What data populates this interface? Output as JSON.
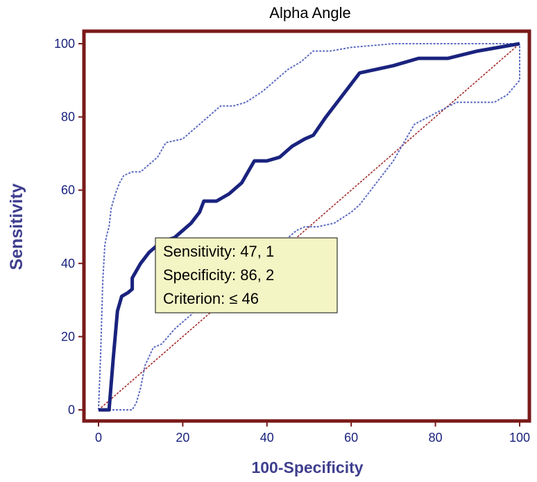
{
  "chart_data": {
    "type": "line",
    "title": "Alpha Angle",
    "xlabel": "100-Specificity",
    "ylabel": "Sensitivity",
    "xlim": [
      0,
      100
    ],
    "ylim": [
      0,
      100
    ],
    "xticks": [
      "0",
      "20",
      "40",
      "60",
      "80",
      "100"
    ],
    "yticks": [
      "0",
      "20",
      "40",
      "60",
      "80",
      "100"
    ],
    "grid": false,
    "colors": {
      "frame": "#7a1a1a",
      "roc": "#1a237e",
      "ci": "#5c6bc0",
      "diagonal": "#a52a2a",
      "annotation_fill": "#f3f5c4",
      "annotation_border": "#333333"
    },
    "series": [
      {
        "x": [
          0,
          2.5,
          3.5,
          4.5,
          5.5,
          7,
          8,
          8,
          9,
          10,
          12,
          15,
          18,
          20,
          22,
          24,
          25,
          28,
          31,
          34,
          37,
          40,
          43,
          46,
          49,
          51,
          54,
          58,
          62,
          70,
          76,
          83,
          90,
          100
        ],
        "y": [
          0,
          0,
          14,
          27,
          31,
          32,
          33,
          36,
          38,
          40,
          43,
          46,
          47,
          49,
          51,
          54,
          57,
          57,
          59,
          62,
          68,
          68,
          69,
          72,
          74,
          75,
          80,
          86,
          92,
          94,
          96,
          96,
          98,
          100
        ]
      },
      {
        "x": [
          0,
          0.5,
          1,
          1.5,
          2,
          2.5,
          3,
          4,
          5,
          6,
          8,
          10,
          12,
          14,
          16,
          20,
          22,
          24,
          27,
          29,
          32,
          35,
          39,
          42,
          45,
          48,
          51,
          55,
          60,
          70,
          80,
          90,
          97,
          100
        ],
        "y": [
          0,
          15,
          35,
          45,
          48,
          50,
          55,
          59,
          62,
          64,
          65,
          65,
          67,
          69,
          73,
          74,
          76,
          78,
          81,
          83,
          83,
          84,
          87,
          90,
          93,
          95,
          98,
          98,
          99,
          100,
          100,
          100,
          100,
          100
        ]
      },
      {
        "x": [
          0,
          2,
          4,
          6,
          8,
          9,
          10,
          11,
          13,
          15,
          18,
          22,
          25,
          28,
          31,
          34,
          37,
          41,
          45,
          47,
          49,
          52,
          56,
          60,
          62,
          66,
          70,
          73,
          75,
          80,
          85,
          90,
          94,
          97,
          100,
          100
        ],
        "y": [
          0,
          0,
          0,
          0,
          0,
          2,
          6,
          12,
          17,
          18,
          22,
          26,
          30,
          31,
          34,
          38,
          41,
          44,
          47,
          49,
          50,
          50,
          51,
          54,
          56,
          62,
          68,
          74,
          78,
          81,
          84,
          84,
          84,
          86,
          90,
          100
        ]
      },
      {
        "x": [
          0,
          100
        ],
        "y": [
          0,
          100
        ]
      }
    ],
    "annotation": {
      "lines": [
        "Sensitivity: 47, 1",
        "Specificity: 86, 2",
        "Criterion: ≤ 46"
      ]
    }
  }
}
